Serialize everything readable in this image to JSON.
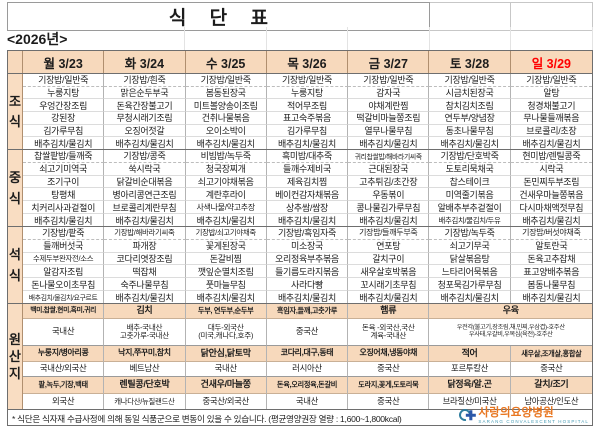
{
  "title": "식  단  표",
  "year_label": "<2026년>",
  "colors": {
    "header_bg": "#f7d9bc",
    "label_bg": "#f9ddc2",
    "sunday_red": "#ff0000",
    "logo_orange": "#e87722",
    "logo_blue": "#2b57a8",
    "logo_teal": "#2e7d9e"
  },
  "days": [
    {
      "label": "월 3/23"
    },
    {
      "label": "화 3/24"
    },
    {
      "label": "수 3/25"
    },
    {
      "label": "목 3/26"
    },
    {
      "label": "금 3/27"
    },
    {
      "label": "토 3/28"
    },
    {
      "label": "일 3/29",
      "color": "#ff0000"
    }
  ],
  "meals": [
    {
      "id": "breakfast",
      "label": "조식",
      "rows_by_day": [
        [
          "기장밥/일반죽",
          "누룽지탕",
          "우엉간장조림",
          "강된장",
          "김가루무침",
          "배추김치/물김치"
        ],
        [
          "기장밥/흰죽",
          "맑은순두부국",
          "돈육간장불고기",
          "무청시래기조림",
          "오징어젓갈",
          "배추김치/물김치"
        ],
        [
          "기장밥/일반죽",
          "봄동된장국",
          "미트볼양송이조림",
          "건취나물볶음",
          "오이소박이",
          "배추김치/물김치"
        ],
        [
          "기장밥/일반죽",
          "누룽지탕",
          "적어무조림",
          "표고숙주볶음",
          "김가루무침",
          "배추김치/물김치"
        ],
        [
          "기장밥/일반죽",
          "감자국",
          "야채계란찜",
          "떡갈비마늘쫑조림",
          "열무나물무침",
          "배추김치/물김치"
        ],
        [
          "기장밥/일반죽",
          "시금치된장국",
          "참치김치조림",
          "연두부/양념장",
          "동초나물무침",
          "배추김치/물김치"
        ],
        [
          "기장밥/일반죽",
          "알탕",
          "청경채불고기",
          "무나물들깨볶음",
          "브로콜리/초장",
          "배추김치/물김치"
        ]
      ]
    },
    {
      "id": "lunch",
      "label": "중식",
      "rows_by_day": [
        [
          "찹쌀팥밥/들깨죽",
          "쇠고기미역국",
          "조기구이",
          "탕평채",
          "치커리사과겉절이",
          "배추김치/물김치"
        ],
        [
          "기장밥/콩죽",
          "쑥시락국",
          "닭갈비순대볶음",
          "병아리콩연근조림",
          "브로콜리계란무침",
          "배추김치/물김치"
        ],
        [
          "비빔밥/녹두죽",
          "청국장찌개",
          "쇠고기야채볶음",
          "계란후라이",
          "사색나물/약고추장",
          "배추김치/물김치"
        ],
        [
          "흑미밥/대추죽",
          "들깨수제비국",
          "제육김치찜",
          "베이컨감자채볶음",
          "상추쌈/쌈장",
          "배추김치/물김치"
        ],
        [
          "귀리찹쌀밥/해바라기씨죽",
          "근대된장국",
          "고추튀김/초간장",
          "우동볶이",
          "콩나물김가루무침",
          "배추김치/물김치"
        ],
        [
          "기장밥/단호박죽",
          "도토리묵채국",
          "찹스테이크",
          "미역줄기볶음",
          "알배추부추겉절이",
          "배추김치/물김치/두유"
        ],
        [
          "현미밥/렌틸콩죽",
          "시락국",
          "돈민찌두부조림",
          "건새우마늘쫑볶음",
          "다시마채액젓무침",
          "배추김치/물김치"
        ]
      ]
    },
    {
      "id": "dinner",
      "label": "석식",
      "rows_by_day": [
        [
          "기장밥/팥죽",
          "들깨버섯국",
          "수제두부완자전/소스",
          "알감자조림",
          "돈나물오이초무침",
          "배추김치/물김치/요구르트"
        ],
        [
          "기장밥/해바라기씨죽",
          "파개장",
          "코다리엿장조림",
          "떡잡채",
          "숙주나물무침",
          "배추김치/물김치"
        ],
        [
          "기장밥/쇠고기야채죽",
          "꽃게된장국",
          "돈갈비찜",
          "깻잎순멸치조림",
          "풋마늘무침",
          "배추김치/물김치"
        ],
        [
          "기장밥/흑임자죽",
          "미소장국",
          "오리정육부추볶음",
          "들기름도라지볶음",
          "사라다빵",
          "배추김치/물김치"
        ],
        [
          "기장밥/들깨두부죽",
          "연포탕",
          "갈치구이",
          "새우살호박볶음",
          "꼬시래기초무침",
          "배추김치/물김치"
        ],
        [
          "기장밥/녹두죽",
          "쇠고기무국",
          "닭살볶음탕",
          "느타리어묵볶음",
          "청포묵김가루무침",
          "배추김치/물김치"
        ],
        [
          "기장밥/버섯야채죽",
          "알토란국",
          "돈육고추잡채",
          "표고양배추볶음",
          "봄동나물무침",
          "배추김치/물김치"
        ]
      ]
    }
  ],
  "origin": {
    "label": "원산지",
    "rows": [
      {
        "kind": "header",
        "cells": [
          {
            "t": "백미,찹쌀,현미,흑미,귀리"
          },
          {
            "t": "김치"
          },
          {
            "t": "두부, 연두부,순두부"
          },
          {
            "t": "흑임자,들깨,고춧가루"
          },
          {
            "t": "햄류"
          },
          {
            "t": "우육",
            "span": 2
          }
        ]
      },
      {
        "kind": "value",
        "cells": [
          {
            "t": "국내산"
          },
          {
            "t": "배추-국내산\n고춧가루-국내산"
          },
          {
            "t": "대두-외국산\n(미국,캐나다,호주)"
          },
          {
            "t": "중국산"
          },
          {
            "t": "돈육 -외국산,국산\n계육-국내산"
          },
          {
            "t": "우전각(불고기,장조림,채,민찌,우삼겹)-호주산\n우사태,우갈비,우목심(육전)-호주산",
            "span": 2
          }
        ]
      },
      {
        "kind": "header",
        "cells": [
          {
            "t": "누룽지/병아리콩"
          },
          {
            "t": "낙지,쭈꾸미,참치"
          },
          {
            "t": "닭안심,닭토막"
          },
          {
            "t": "코다리,대구,동태"
          },
          {
            "t": "오징어채,냉동야채"
          },
          {
            "t": "적어"
          },
          {
            "t": "새우살,조개살,홍합살"
          }
        ]
      },
      {
        "kind": "value",
        "cells": [
          {
            "t": "국내산/외국산"
          },
          {
            "t": "베트남산"
          },
          {
            "t": "국내산"
          },
          {
            "t": "러시아산"
          },
          {
            "t": "중국산"
          },
          {
            "t": "포르투칼산"
          },
          {
            "t": "중국산"
          }
        ]
      },
      {
        "kind": "header",
        "cells": [
          {
            "t": "팥,녹두,기장,백태"
          },
          {
            "t": "렌틸콩/단호박"
          },
          {
            "t": "건새우/마늘쫑"
          },
          {
            "t": "돈육,오리정육,돈갈비"
          },
          {
            "t": "도라지,꽃게,도토리묵"
          },
          {
            "t": "닭정육/알.곤"
          },
          {
            "t": "갈치/조기"
          }
        ]
      },
      {
        "kind": "value",
        "cells": [
          {
            "t": "외국산"
          },
          {
            "t": "캐나다산/뉴질랜드산"
          },
          {
            "t": "중국산/외국산"
          },
          {
            "t": "국내산"
          },
          {
            "t": "중국산"
          },
          {
            "t": "브라질산/미국산"
          },
          {
            "t": "남아공산/인도산"
          }
        ]
      }
    ]
  },
  "footer": {
    "note": "* 식단은 식자재 수급사정에 의해 동일 식품군으로 변동이 있을 수 있습니다. (평균영양권장 열량 : 1,600~1,800kcal)",
    "hospital_name": "사랑의요양병원",
    "hospital_sub": "SARANG CONVALESCENT HOSPITAL",
    "logo_icon": "crescent-cross"
  }
}
